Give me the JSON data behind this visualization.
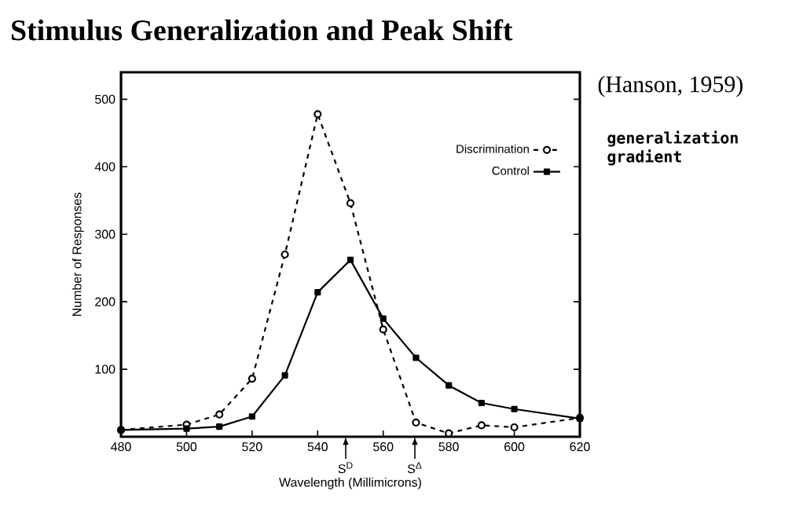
{
  "chart_data": {
    "type": "line",
    "title": "Stimulus Generalization and Peak Shift",
    "xlabel": "Wavelength (Millimicrons)",
    "ylabel": "Number of Responses",
    "xlim": [
      480,
      620
    ],
    "ylim": [
      0,
      540
    ],
    "xticks": [
      480,
      500,
      520,
      540,
      560,
      580,
      600,
      620
    ],
    "yticks": [
      100,
      200,
      300,
      400,
      500
    ],
    "legend": "top right",
    "series": [
      {
        "name": "Discrimination",
        "color": "#000000",
        "marker": "circle",
        "line_style": "dashed",
        "x": [
          480,
          500,
          510,
          520,
          530,
          540,
          550,
          560,
          570,
          580,
          590,
          600,
          620
        ],
        "values": [
          10,
          18,
          33,
          86,
          270,
          478,
          346,
          159,
          21,
          5,
          17,
          14,
          28
        ]
      },
      {
        "name": "Control",
        "color": "#000000",
        "marker": "square",
        "line_style": "solid",
        "x": [
          480,
          500,
          510,
          520,
          530,
          540,
          550,
          560,
          570,
          580,
          590,
          600,
          620
        ],
        "values": [
          10,
          12,
          15,
          30,
          91,
          214,
          262,
          175,
          117,
          76,
          50,
          41,
          27
        ]
      }
    ],
    "annotations": [
      "(Hanson, 1959)",
      "generalization gradient",
      "S$^{D}$",
      "S$^{Δ}$"
    ]
  }
}
